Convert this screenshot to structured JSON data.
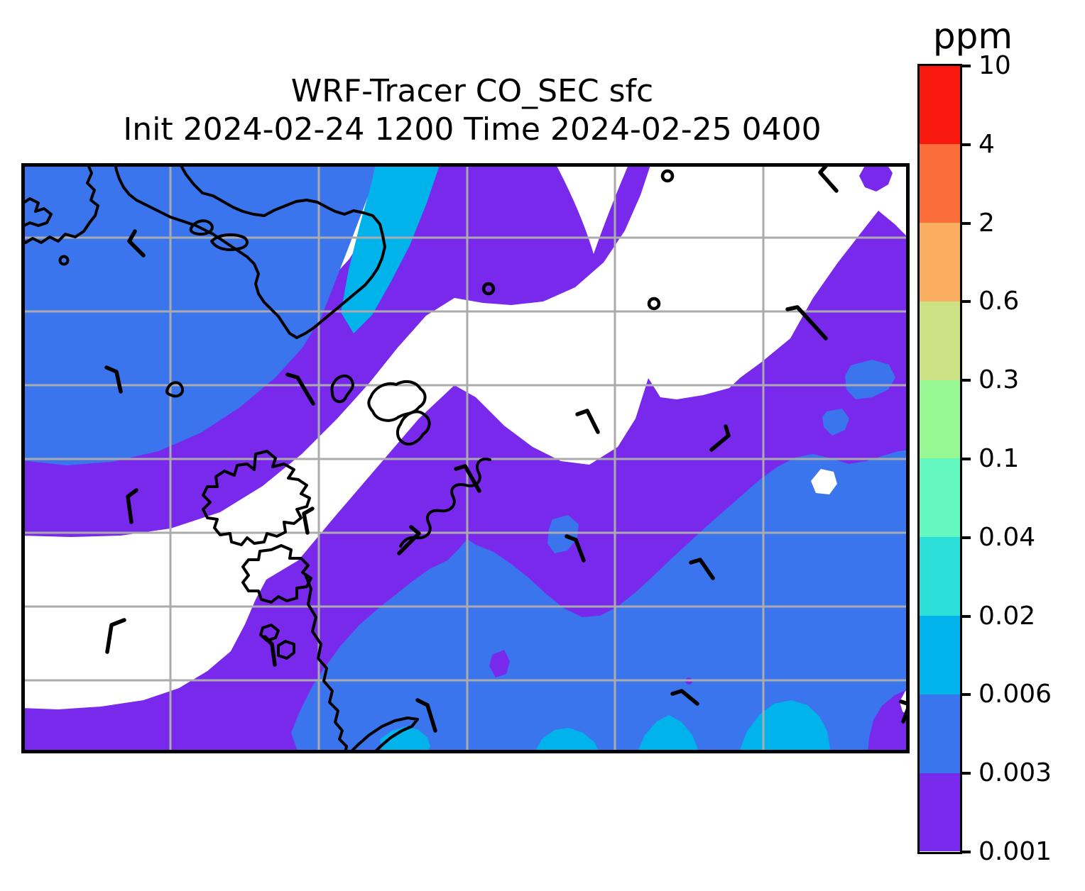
{
  "title": {
    "line1": "WRF-Tracer CO_SEC sfc",
    "line2": "Init 2024-02-24 1200 Time 2024-02-25 0400"
  },
  "colorbar": {
    "label": "ppm",
    "tick_labels": [
      "10",
      "4",
      "2",
      "0.6",
      "0.3",
      "0.1",
      "0.04",
      "0.02",
      "0.006",
      "0.003",
      "0.001"
    ],
    "segment_colors_top_to_bottom": [
      "#F9180D",
      "#FB6E3B",
      "#FCAE60",
      "#CCE284",
      "#98F894",
      "#64F8C0",
      "#2CDFD8",
      "#00B4EB",
      "#3A75ED",
      "#7829EC"
    ]
  },
  "map": {
    "background_color": "#FFFFFF",
    "grid_color": "#ABABAB",
    "coastline_color": "#000000",
    "border_color": "#000000",
    "wind_barb_color": "#000000"
  },
  "chart_data": {
    "type": "heatmap",
    "subtype": "filled-contour-map",
    "title": "WRF-Tracer CO_SEC sfc",
    "subtitle": "Init 2024-02-24 1200 Time 2024-02-25 0400",
    "variable": "CO_SEC",
    "level": "sfc",
    "units": "ppm",
    "init_time": "2024-02-24 1200",
    "valid_time": "2024-02-25 0400",
    "contour_levels_ppm": [
      0.001,
      0.003,
      0.006,
      0.02,
      0.04,
      0.1,
      0.3,
      0.6,
      2,
      4,
      10
    ],
    "level_colors": [
      "#7829EC",
      "#3A75ED",
      "#00B4EB",
      "#2CDFD8",
      "#64F8C0",
      "#98F894",
      "#CCE284",
      "#FCAE60",
      "#FB6E3B",
      "#F9180D"
    ],
    "shaded_classes_visible_on_map_ppm": [
      "0.001-0.003",
      "0.003-0.006",
      "0.006-0.02"
    ],
    "grid": true,
    "legend_position": "right-colorbar",
    "overlays": [
      "coastlines",
      "wind-barbs",
      "calm-wind-circles",
      "lat-lon-gridlines"
    ]
  }
}
